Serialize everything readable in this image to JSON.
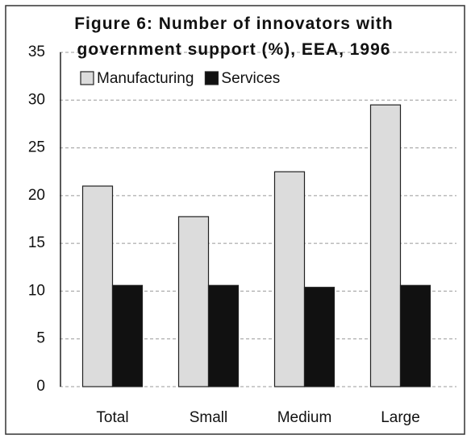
{
  "chart_data": {
    "type": "bar",
    "title": "Figure 6: Number of innovators with government support (%), EEA, 1996",
    "categories": [
      "Total",
      "Small",
      "Medium",
      "Large"
    ],
    "series": [
      {
        "name": "Manufacturing",
        "color": "#dcdcdc",
        "values": [
          21,
          17.8,
          22.5,
          29.5
        ]
      },
      {
        "name": "Services",
        "color": "#111111",
        "values": [
          10.6,
          10.6,
          10.4,
          10.6
        ]
      }
    ],
    "ylim": [
      0,
      35
    ],
    "yticks": [
      0,
      5,
      10,
      15,
      20,
      25,
      30,
      35
    ],
    "grid": true,
    "legend": "top-left"
  }
}
